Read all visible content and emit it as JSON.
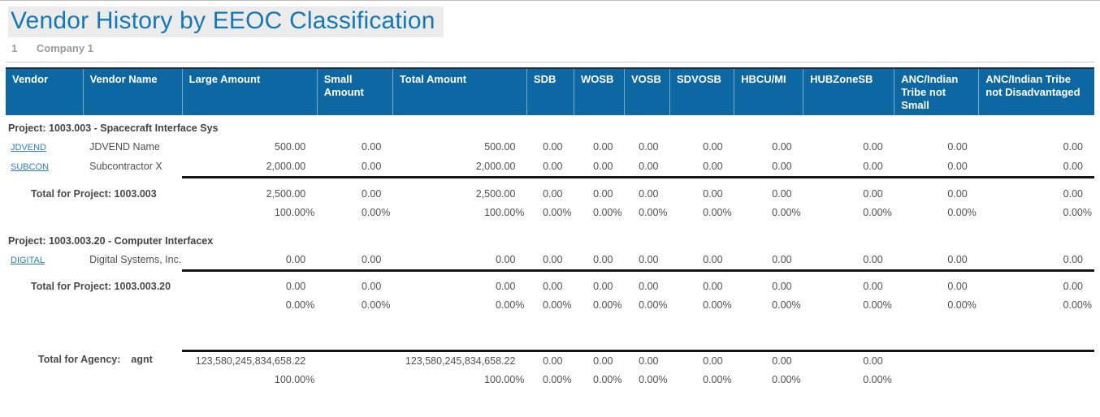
{
  "page": {
    "title": "Vendor History by EEOC Classification",
    "company_number": "1",
    "company_name": "Company 1"
  },
  "colors": {
    "header_bg": "#0d67a2",
    "title_blue": "#1478b8",
    "link_blue": "#2d7fc1",
    "title_highlight": "#ececec"
  },
  "table": {
    "columns": [
      "Vendor",
      "Vendor Name",
      "Large Amount",
      "Small Amount",
      "Total Amount",
      "SDB",
      "WOSB",
      "VOSB",
      "SDVOSB",
      "HBCU/MI",
      "HUBZoneSB",
      "ANC/Indian Tribe not Small",
      "ANC/Indian Tribe not Disadvantaged"
    ],
    "groups": [
      {
        "header": "Project: 1003.003 - Spacecraft Interface Sys",
        "rows": [
          {
            "vendor": "JDVEND",
            "vendor_name": "JDVEND Name",
            "values": [
              "500.00",
              "0.00",
              "500.00",
              "0.00",
              "0.00",
              "0.00",
              "0.00",
              "0.00",
              "0.00",
              "0.00",
              "0.00"
            ]
          },
          {
            "vendor": "SUBCON",
            "vendor_name": "Subcontractor X",
            "values": [
              "2,000.00",
              "0.00",
              "2,000.00",
              "0.00",
              "0.00",
              "0.00",
              "0.00",
              "0.00",
              "0.00",
              "0.00",
              "0.00"
            ]
          }
        ],
        "total_label": "Total for Project: 1003.003",
        "total_values": [
          "2,500.00",
          "0.00",
          "2,500.00",
          "0.00",
          "0.00",
          "0.00",
          "0.00",
          "0.00",
          "0.00",
          "0.00",
          "0.00"
        ],
        "total_percents": [
          "100.00%",
          "0.00%",
          "100.00%",
          "0.00%",
          "0.00%",
          "0.00%",
          "0.00%",
          "0.00%",
          "0.00%",
          "0.00%",
          "0.00%"
        ]
      },
      {
        "header": "Project: 1003.003.20 - Computer Interfacex",
        "rows": [
          {
            "vendor": "DIGITAL",
            "vendor_name": "Digital Systems, Inc.",
            "values": [
              "0.00",
              "0.00",
              "0.00",
              "0.00",
              "0.00",
              "0.00",
              "0.00",
              "0.00",
              "0.00",
              "0.00",
              "0.00"
            ]
          }
        ],
        "total_label": "Total for Project: 1003.003.20",
        "total_values": [
          "0.00",
          "0.00",
          "0.00",
          "0.00",
          "0.00",
          "0.00",
          "0.00",
          "0.00",
          "0.00",
          "0.00",
          "0.00"
        ],
        "total_percents": [
          "0.00%",
          "0.00%",
          "0.00%",
          "0.00%",
          "0.00%",
          "0.00%",
          "0.00%",
          "0.00%",
          "0.00%",
          "0.00%",
          "0.00%"
        ]
      }
    ],
    "agency_total": {
      "label": "Total for Agency:",
      "agency_code": "agnt",
      "values": [
        "123,580,245,834,658.22",
        "",
        "123,580,245,834,658.22",
        "0.00",
        "0.00",
        "0.00",
        "0.00",
        "0.00",
        "0.00",
        "",
        ""
      ],
      "percents": [
        "100.00%",
        "",
        "100.00%",
        "0.00%",
        "0.00%",
        "0.00%",
        "0.00%",
        "0.00%",
        "0.00%",
        "",
        ""
      ]
    }
  }
}
